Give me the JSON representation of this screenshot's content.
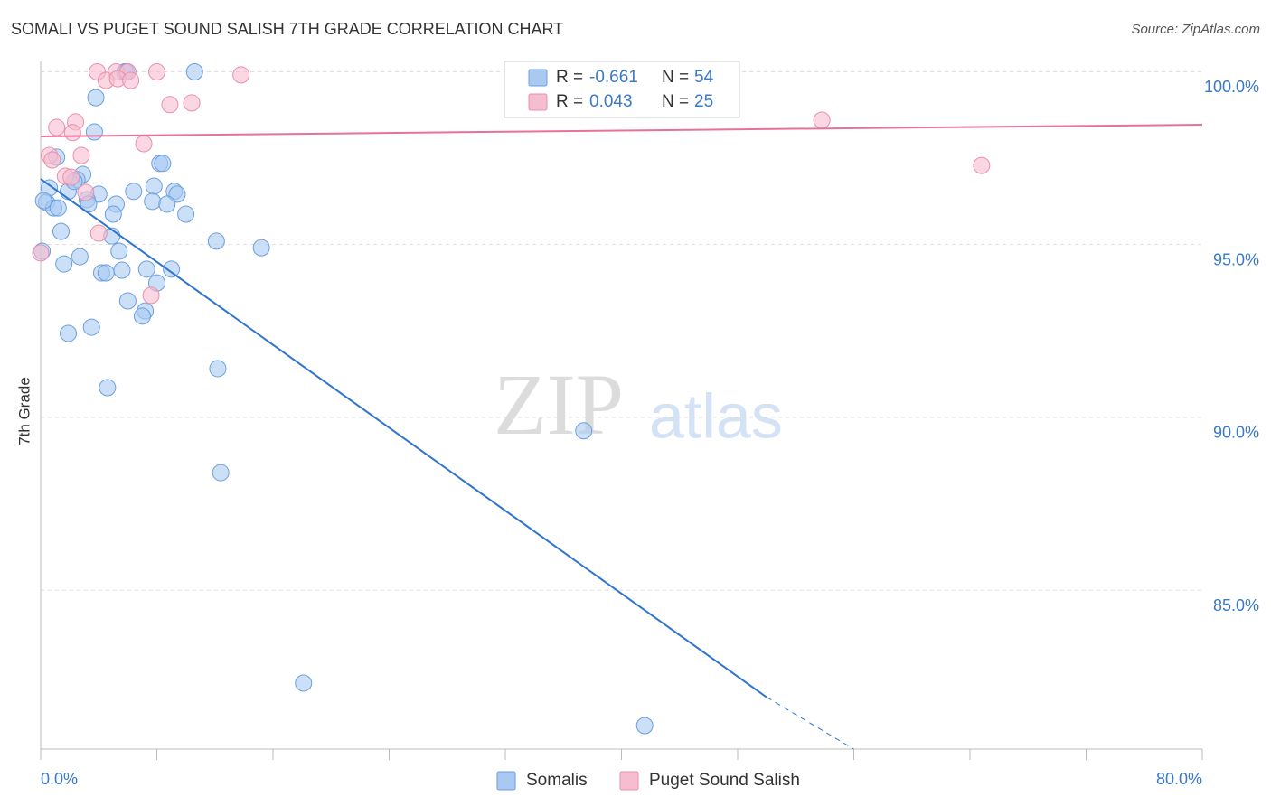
{
  "chart_data": {
    "type": "scatter",
    "title": "SOMALI VS PUGET SOUND SALISH 7TH GRADE CORRELATION CHART",
    "source": "Source: ZipAtlas.com",
    "y_label": "7th Grade",
    "watermark": [
      "ZIP",
      "atlas"
    ],
    "stat_labels": [
      "R =",
      "N ="
    ],
    "xlim": [
      0,
      80
    ],
    "ylim": [
      80.4,
      100.3
    ],
    "xticks": [
      {
        "value": 0,
        "label": "0.0%"
      },
      {
        "value": 80,
        "label": "80.0%"
      }
    ],
    "x_minor_ticks": [
      8,
      16,
      24,
      32,
      40,
      48,
      56,
      64,
      72
    ],
    "yticks": [
      {
        "value": 85,
        "label": "85.0%"
      },
      {
        "value": 90,
        "label": "90.0%"
      },
      {
        "value": 95,
        "label": "95.0%"
      },
      {
        "value": 100,
        "label": "100.0%"
      }
    ],
    "grid": true,
    "series": [
      {
        "name": "Somalis",
        "color": "#a9c9f1",
        "edge": "#6a9fe0",
        "line_color": "#2f74d0",
        "r": -0.661,
        "n": 54,
        "x": [
          10.6,
          5.8,
          3.8,
          3.7,
          1.1,
          2.9,
          2.5,
          0.6,
          1.9,
          4.0,
          0.4,
          0.9,
          1.2,
          3.2,
          3.3,
          5.2,
          5.0,
          6.4,
          8.2,
          8.4,
          7.8,
          9.2,
          9.4,
          7.7,
          8.7,
          10.0,
          1.4,
          4.9,
          12.1,
          15.2,
          0.1,
          5.4,
          2.7,
          1.6,
          4.2,
          4.5,
          5.6,
          7.3,
          9.0,
          8.0,
          6.0,
          7.2,
          7.0,
          3.5,
          1.9,
          12.2,
          4.6,
          37.4,
          12.4,
          18.1,
          41.6,
          0.2,
          2.3,
          5.9
        ],
        "values": [
          100.0,
          100.0,
          99.25,
          98.26,
          97.53,
          97.03,
          96.88,
          96.64,
          96.54,
          96.46,
          96.22,
          96.06,
          96.06,
          96.3,
          96.17,
          96.17,
          95.88,
          96.54,
          97.35,
          97.35,
          96.69,
          96.54,
          96.46,
          96.25,
          96.17,
          95.88,
          95.38,
          95.25,
          95.1,
          94.91,
          94.81,
          94.81,
          94.65,
          94.44,
          94.18,
          94.18,
          94.26,
          94.29,
          94.29,
          93.89,
          93.37,
          93.08,
          92.93,
          92.61,
          92.43,
          91.41,
          90.86,
          89.61,
          88.4,
          82.31,
          81.08,
          96.27,
          96.83,
          100.0
        ],
        "trend": {
          "x": [
            0,
            50
          ],
          "values": [
            96.9,
            81.9
          ],
          "extension": {
            "x": [
              50,
              56
            ],
            "values": [
              81.9,
              80.4
            ]
          }
        }
      },
      {
        "name": "Puget Sound Salish",
        "color": "#f6bccf",
        "edge": "#e890ab",
        "line_color": "#e8719a",
        "r": 0.043,
        "n": 25,
        "x": [
          3.9,
          5.2,
          6.0,
          8.0,
          13.8,
          4.5,
          5.3,
          6.2,
          8.9,
          10.4,
          2.4,
          1.1,
          2.2,
          53.8,
          7.1,
          0.6,
          2.8,
          0.8,
          64.8,
          1.7,
          2.1,
          3.1,
          4.0,
          7.6,
          0.0
        ],
        "values": [
          100.0,
          100.0,
          100.0,
          100.0,
          99.91,
          99.75,
          99.8,
          99.75,
          99.05,
          99.1,
          98.55,
          98.39,
          98.24,
          98.6,
          97.92,
          97.58,
          97.58,
          97.45,
          97.29,
          96.98,
          96.95,
          96.51,
          95.33,
          93.53,
          94.76
        ],
        "trend": {
          "x": [
            0,
            80
          ],
          "values": [
            98.13,
            98.47
          ]
        }
      }
    ]
  }
}
